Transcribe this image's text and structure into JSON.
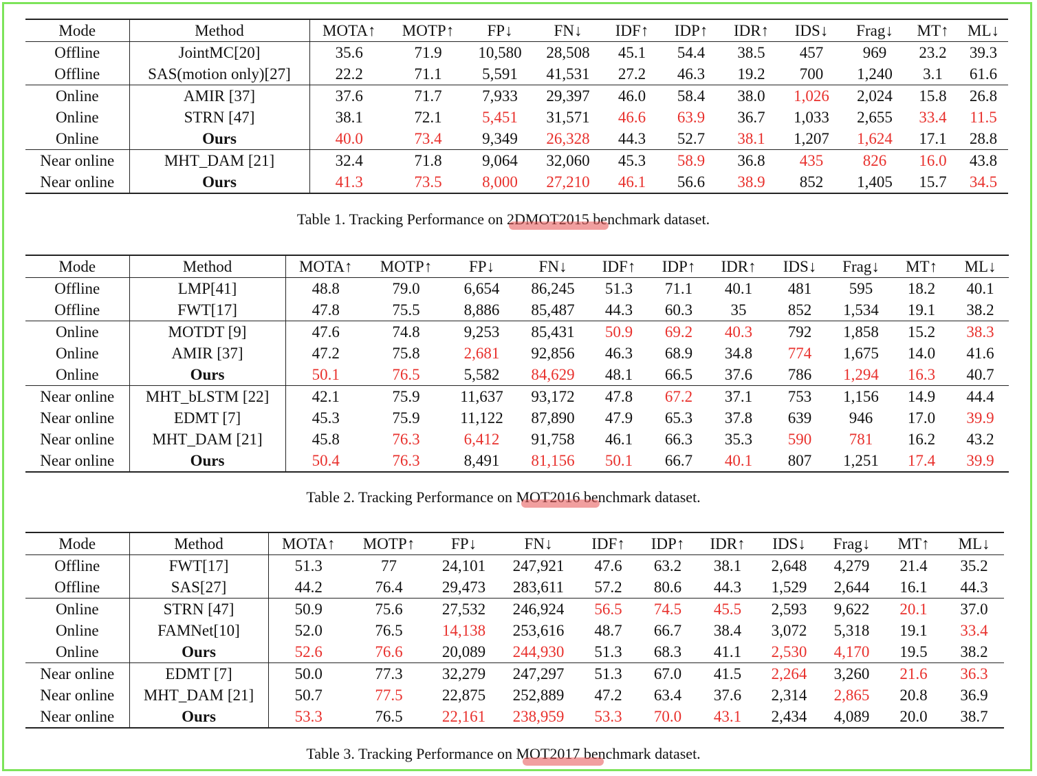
{
  "tables": [
    {
      "caption": "Table 1. Tracking Performance on 2DMOT2015 benchmark dataset.",
      "columns": [
        "Mode",
        "Method",
        "MOTA↑",
        "MOTP↑",
        "FP↓",
        "FN↓",
        "IDF↑",
        "IDP↑",
        "IDR↑",
        "IDS↓",
        "Frag↓",
        "MT↑",
        "ML↓"
      ],
      "groups": [
        [
          {
            "cells": [
              "Offline",
              "JointMC[20]",
              "35.6",
              "71.9",
              "10,580",
              "28,508",
              "45.1",
              "54.4",
              "38.5",
              "457",
              "969",
              "23.2",
              "39.3"
            ],
            "red": []
          },
          {
            "cells": [
              "Offline",
              "SAS(motion only)[27]",
              "22.2",
              "71.1",
              "5,591",
              "41,531",
              "27.2",
              "46.3",
              "19.2",
              "700",
              "1,240",
              "3.1",
              "61.6"
            ],
            "red": []
          }
        ],
        [
          {
            "cells": [
              "Online",
              "AMIR [37]",
              "37.6",
              "71.7",
              "7,933",
              "29,397",
              "46.0",
              "58.4",
              "38.0",
              "1,026",
              "2,024",
              "15.8",
              "26.8"
            ],
            "red": [
              9
            ]
          },
          {
            "cells": [
              "Online",
              "STRN [47]",
              "38.1",
              "72.1",
              "5,451",
              "31,571",
              "46.6",
              "63.9",
              "36.7",
              "1,033",
              "2,655",
              "33.4",
              "11.5"
            ],
            "red": [
              4,
              6,
              7,
              11,
              12
            ]
          },
          {
            "cells": [
              "Online",
              "Ours",
              "40.0",
              "73.4",
              "9,349",
              "26,328",
              "44.3",
              "52.7",
              "38.1",
              "1,207",
              "1,624",
              "17.1",
              "28.8"
            ],
            "red": [
              2,
              3,
              5,
              8,
              10
            ],
            "bold_method": true
          }
        ],
        [
          {
            "cells": [
              "Near online",
              "MHT_DAM [21]",
              "32.4",
              "71.8",
              "9,064",
              "32,060",
              "45.3",
              "58.9",
              "36.8",
              "435",
              "826",
              "16.0",
              "43.8"
            ],
            "red": [
              7,
              9,
              10,
              11
            ]
          },
          {
            "cells": [
              "Near online",
              "Ours",
              "41.3",
              "73.5",
              "8,000",
              "27,210",
              "46.1",
              "56.6",
              "38.9",
              "852",
              "1,405",
              "15.7",
              "34.5"
            ],
            "red": [
              2,
              3,
              4,
              5,
              6,
              8,
              12
            ],
            "bold_method": true
          }
        ]
      ]
    },
    {
      "caption": "Table 2. Tracking Performance on MOT2016 benchmark dataset.",
      "columns": [
        "Mode",
        "Method",
        "MOTA↑",
        "MOTP↑",
        "FP↓",
        "FN↓",
        "IDF↑",
        "IDP↑",
        "IDR↑",
        "IDS↓",
        "Frag↓",
        "MT↑",
        "ML↓"
      ],
      "groups": [
        [
          {
            "cells": [
              "Offline",
              "LMP[41]",
              "48.8",
              "79.0",
              "6,654",
              "86,245",
              "51.3",
              "71.1",
              "40.1",
              "481",
              "595",
              "18.2",
              "40.1"
            ],
            "red": []
          },
          {
            "cells": [
              "Offline",
              "FWT[17]",
              "47.8",
              "75.5",
              "8,886",
              "85,487",
              "44.3",
              "60.3",
              "35",
              "852",
              "1,534",
              "19.1",
              "38.2"
            ],
            "red": []
          }
        ],
        [
          {
            "cells": [
              "Online",
              "MOTDT [9]",
              "47.6",
              "74.8",
              "9,253",
              "85,431",
              "50.9",
              "69.2",
              "40.3",
              "792",
              "1,858",
              "15.2",
              "38.3"
            ],
            "red": [
              6,
              7,
              8,
              12
            ]
          },
          {
            "cells": [
              "Online",
              "AMIR [37]",
              "47.2",
              "75.8",
              "2,681",
              "92,856",
              "46.3",
              "68.9",
              "34.8",
              "774",
              "1,675",
              "14.0",
              "41.6"
            ],
            "red": [
              4,
              9
            ]
          },
          {
            "cells": [
              "Online",
              "Ours",
              "50.1",
              "76.5",
              "5,582",
              "84,629",
              "48.1",
              "66.5",
              "37.6",
              "786",
              "1,294",
              "16.3",
              "40.7"
            ],
            "red": [
              2,
              3,
              5,
              10,
              11
            ],
            "bold_method": true
          }
        ],
        [
          {
            "cells": [
              "Near online",
              "MHT_bLSTM [22]",
              "42.1",
              "75.9",
              "11,637",
              "93,172",
              "47.8",
              "67.2",
              "37.1",
              "753",
              "1,156",
              "14.9",
              "44.4"
            ],
            "red": [
              7
            ]
          },
          {
            "cells": [
              "Near online",
              "EDMT [7]",
              "45.3",
              "75.9",
              "11,122",
              "87,890",
              "47.9",
              "65.3",
              "37.8",
              "639",
              "946",
              "17.0",
              "39.9"
            ],
            "red": [
              12
            ]
          },
          {
            "cells": [
              "Near online",
              "MHT_DAM [21]",
              "45.8",
              "76.3",
              "6,412",
              "91,758",
              "46.1",
              "66.3",
              "35.3",
              "590",
              "781",
              "16.2",
              "43.2"
            ],
            "red": [
              3,
              4,
              9,
              10
            ]
          },
          {
            "cells": [
              "Near online",
              "Ours",
              "50.4",
              "76.3",
              "8,491",
              "81,156",
              "50.1",
              "66.7",
              "40.1",
              "807",
              "1,251",
              "17.4",
              "39.9"
            ],
            "red": [
              2,
              3,
              5,
              6,
              8,
              11,
              12
            ],
            "bold_method": true
          }
        ]
      ]
    },
    {
      "caption": "Table 3. Tracking Performance on MOT2017 benchmark dataset.",
      "columns": [
        "Mode",
        "Method",
        "MOTA↑",
        "MOTP↑",
        "FP↓",
        "FN↓",
        "IDF↑",
        "IDP↑",
        "IDR↑",
        "IDS↓",
        "Frag↓",
        "MT↑",
        "ML↓"
      ],
      "groups": [
        [
          {
            "cells": [
              "Offline",
              "FWT[17]",
              "51.3",
              "77",
              "24,101",
              "247,921",
              "47.6",
              "63.2",
              "38.1",
              "2,648",
              "4,279",
              "21.4",
              "35.2"
            ],
            "red": []
          },
          {
            "cells": [
              "Offline",
              "SAS[27]",
              "44.2",
              "76.4",
              "29,473",
              "283,611",
              "57.2",
              "80.6",
              "44.3",
              "1,529",
              "2,644",
              "16.1",
              "44.3"
            ],
            "red": []
          }
        ],
        [
          {
            "cells": [
              "Online",
              "STRN [47]",
              "50.9",
              "75.6",
              "27,532",
              "246,924",
              "56.5",
              "74.5",
              "45.5",
              "2,593",
              "9,622",
              "20.1",
              "37.0"
            ],
            "red": [
              6,
              7,
              8,
              11
            ]
          },
          {
            "cells": [
              "Online",
              "FAMNet[10]",
              "52.0",
              "76.5",
              "14,138",
              "253,616",
              "48.7",
              "66.7",
              "38.4",
              "3,072",
              "5,318",
              "19.1",
              "33.4"
            ],
            "red": [
              4,
              12
            ]
          },
          {
            "cells": [
              "Online",
              "Ours",
              "52.6",
              "76.6",
              "20,089",
              "244,930",
              "51.3",
              "68.3",
              "41.1",
              "2,530",
              "4,170",
              "19.5",
              "38.2"
            ],
            "red": [
              2,
              3,
              5,
              9,
              10
            ],
            "bold_method": true
          }
        ],
        [
          {
            "cells": [
              "Near online",
              "EDMT [7]",
              "50.0",
              "77.3",
              "32,279",
              "247,297",
              "51.3",
              "67.0",
              "41.5",
              "2,264",
              "3,260",
              "21.6",
              "36.3"
            ],
            "red": [
              9,
              11,
              12
            ]
          },
          {
            "cells": [
              "Near online",
              "MHT_DAM [21]",
              "50.7",
              "77.5",
              "22,875",
              "252,889",
              "47.2",
              "63.4",
              "37.6",
              "2,314",
              "2,865",
              "20.8",
              "36.9"
            ],
            "red": [
              3,
              10
            ]
          },
          {
            "cells": [
              "Near online",
              "Ours",
              "53.3",
              "76.5",
              "22,161",
              "238,959",
              "53.3",
              "70.0",
              "43.1",
              "2,434",
              "4,089",
              "20.0",
              "38.7"
            ],
            "red": [
              2,
              4,
              5,
              6,
              7,
              8
            ],
            "bold_method": true
          }
        ]
      ]
    }
  ],
  "colors": {
    "highlight_red": "#e8302c",
    "frame_green": "#7de45a",
    "annotation_underline": "#e65050"
  }
}
